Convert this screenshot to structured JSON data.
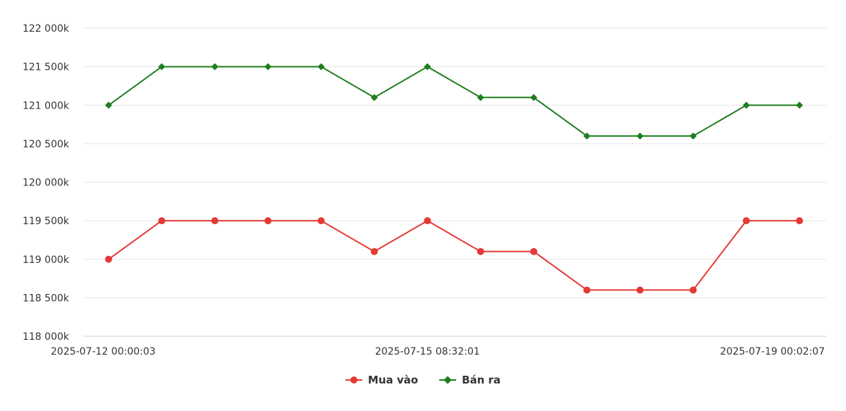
{
  "chart_data": {
    "type": "line",
    "title": "",
    "xlabel": "",
    "ylabel": "",
    "ylim": [
      118000,
      122000
    ],
    "y_ticks": [
      "118 000k",
      "118 500k",
      "119 000k",
      "119 500k",
      "120 000k",
      "120 500k",
      "121 000k",
      "121 500k",
      "122 000k"
    ],
    "y_tick_values": [
      118000,
      118500,
      119000,
      119500,
      120000,
      120500,
      121000,
      121500,
      122000
    ],
    "x_tick_labels": [
      {
        "index": 0,
        "label": "2025-07-12 00:00:03"
      },
      {
        "index": 6,
        "label": "2025-07-15 08:32:01"
      },
      {
        "index": 13,
        "label": "2025-07-19 00:02:07"
      }
    ],
    "point_count": 14,
    "grid": true,
    "legend_position": "bottom",
    "series": [
      {
        "name": "Mua vào",
        "color": "#e53935",
        "marker": "circle",
        "values": [
          119000,
          119500,
          119500,
          119500,
          119500,
          119100,
          119500,
          119100,
          119100,
          118600,
          118600,
          118600,
          119500,
          119500
        ]
      },
      {
        "name": "Bán ra",
        "color": "#1e7e1e",
        "marker": "diamond",
        "values": [
          121000,
          121500,
          121500,
          121500,
          121500,
          121100,
          121500,
          121100,
          121100,
          120600,
          120600,
          120600,
          121000,
          121000
        ]
      }
    ]
  }
}
